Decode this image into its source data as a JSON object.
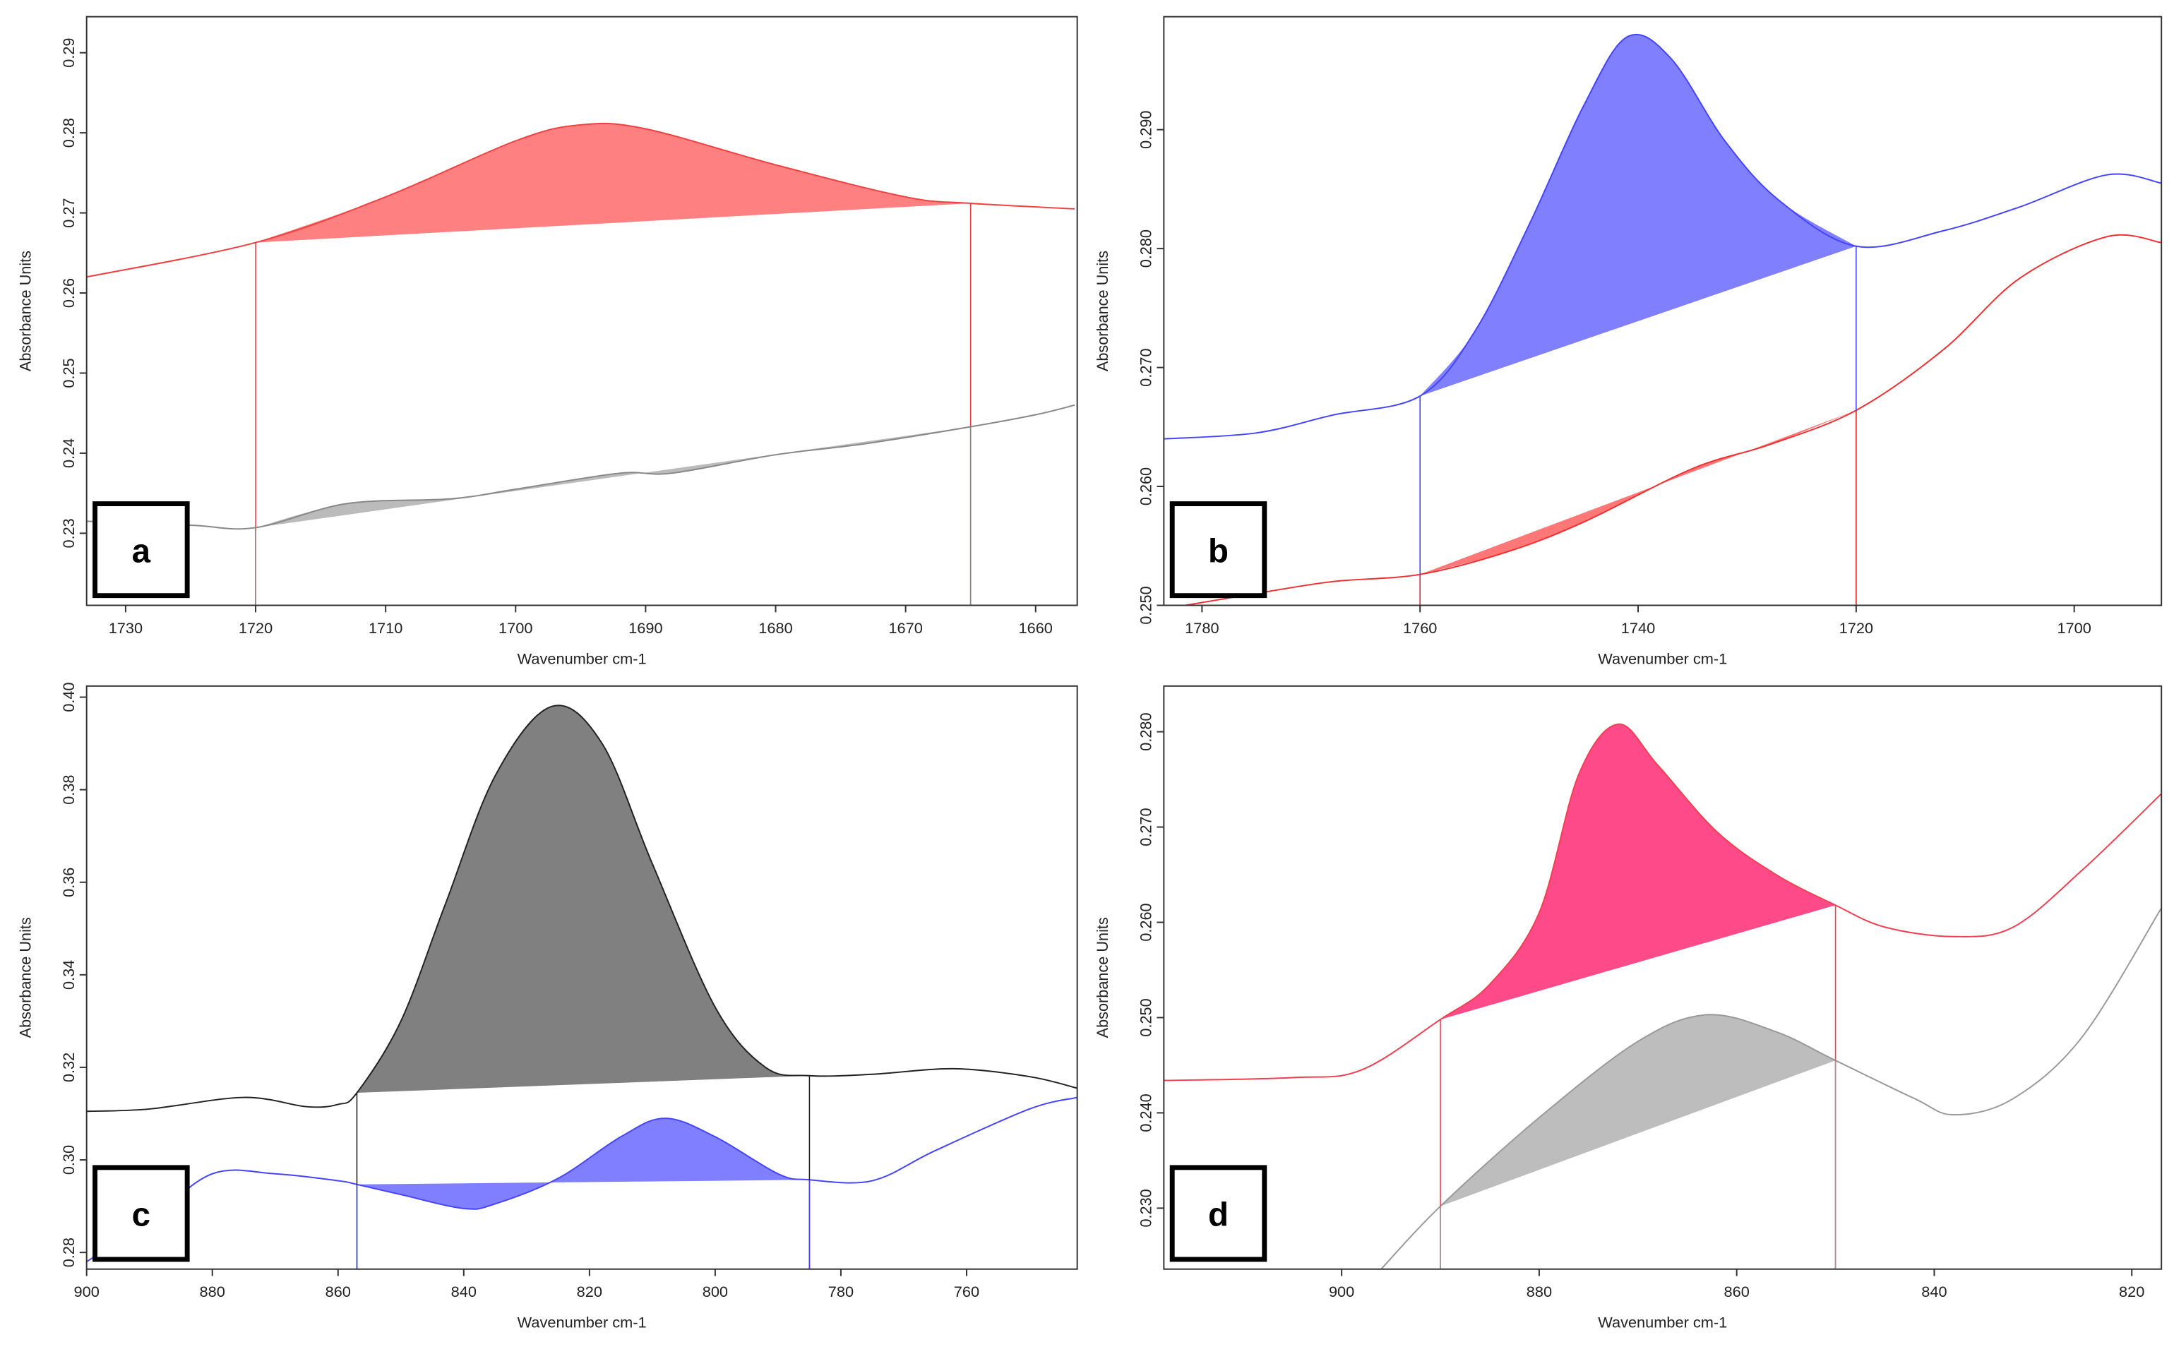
{
  "chart_data": [
    {
      "type": "line",
      "label": "a",
      "xlabel": "Wavenumber cm-1",
      "ylabel": "Absorbance Units",
      "xlim": [
        1733,
        1656.8
      ],
      "ylim": [
        0.221,
        0.2945
      ],
      "xticks": [
        1730,
        1720,
        1710,
        1700,
        1690,
        1680,
        1670,
        1660
      ],
      "yticks": [
        0.23,
        0.24,
        0.25,
        0.26,
        0.27,
        0.28,
        0.29
      ],
      "series": [
        {
          "color": "#f04040",
          "x": [
            1733,
            1720,
            1710,
            1700,
            1695,
            1690,
            1680,
            1670,
            1665,
            1657
          ],
          "values": [
            0.262,
            0.2663,
            0.272,
            0.279,
            0.281,
            0.2805,
            0.276,
            0.272,
            0.2712,
            0.2705
          ]
        },
        {
          "color": "#888888",
          "x": [
            1733,
            1725,
            1720,
            1713,
            1705,
            1700,
            1692,
            1688,
            1680,
            1673,
            1665,
            1660,
            1657
          ],
          "values": [
            0.2315,
            0.231,
            0.2307,
            0.2337,
            0.2343,
            0.2355,
            0.2375,
            0.2375,
            0.2398,
            0.2412,
            0.2433,
            0.2448,
            0.246
          ]
        }
      ],
      "regions": [
        {
          "series": 0,
          "from": 1720,
          "to": 1665,
          "color": "#ff8080"
        },
        {
          "series": 1,
          "from": 1720,
          "to": 1665,
          "color": "#bbbbbb"
        }
      ]
    },
    {
      "type": "line",
      "label": "b",
      "xlabel": "Wavenumber cm-1",
      "ylabel": "Absorbance Units",
      "xlim": [
        1783.5,
        1692
      ],
      "ylim": [
        0.25,
        0.2995
      ],
      "xticks": [
        1780,
        1760,
        1740,
        1720,
        1700
      ],
      "yticks": [
        {
          "value": 0.25,
          "label": "0.250"
        },
        {
          "value": 0.26,
          "label": "0.260"
        },
        {
          "value": 0.27,
          "label": "0.270"
        },
        {
          "value": 0.28,
          "label": "0.280"
        },
        {
          "value": 0.29,
          "label": "0.290"
        }
      ],
      "series": [
        {
          "color": "#4444ff",
          "x": [
            1783.5,
            1775,
            1768,
            1760,
            1755,
            1750,
            1745,
            1741,
            1737,
            1732,
            1727,
            1720,
            1712,
            1705,
            1697,
            1692
          ],
          "values": [
            0.264,
            0.2645,
            0.266,
            0.2676,
            0.273,
            0.282,
            0.292,
            0.2978,
            0.296,
            0.289,
            0.284,
            0.2802,
            0.2815,
            0.2835,
            0.2862,
            0.2855
          ]
        },
        {
          "color": "#f03030",
          "x": [
            1783.5,
            1775,
            1768,
            1760,
            1752,
            1745,
            1735,
            1728,
            1720,
            1712,
            1705,
            1697,
            1692
          ],
          "values": [
            0.2497,
            0.251,
            0.252,
            0.2526,
            0.2545,
            0.257,
            0.2615,
            0.2635,
            0.2664,
            0.2715,
            0.2775,
            0.281,
            0.2805
          ]
        }
      ],
      "regions": [
        {
          "series": 0,
          "from": 1760,
          "to": 1720,
          "color": "#8080ff"
        },
        {
          "series": 1,
          "from": 1760,
          "to": 1720,
          "color": "#ff7777"
        }
      ]
    },
    {
      "type": "line",
      "label": "c",
      "xlabel": "Wavenumber cm-1",
      "ylabel": "Absorbance Units",
      "xlim": [
        900,
        742.4
      ],
      "ylim": [
        0.2764,
        0.4024
      ],
      "xticks": [
        900,
        880,
        860,
        840,
        820,
        800,
        780,
        760
      ],
      "yticks": [
        0.28,
        {
          "value": 0.3,
          "label": "0.30"
        },
        0.32,
        0.34,
        0.36,
        0.38,
        {
          "value": 0.4,
          "label": "0.40"
        }
      ],
      "series": [
        {
          "color": "#222222",
          "x": [
            900,
            890,
            875,
            865,
            860,
            857,
            850,
            843,
            835,
            826,
            818,
            810,
            800,
            792,
            785,
            775,
            762,
            750,
            742.4
          ],
          "values": [
            0.3105,
            0.311,
            0.3135,
            0.3115,
            0.312,
            0.3145,
            0.33,
            0.355,
            0.383,
            0.398,
            0.39,
            0.364,
            0.333,
            0.32,
            0.3182,
            0.3185,
            0.3197,
            0.318,
            0.3155
          ]
        },
        {
          "color": "#4444ff",
          "x": [
            900,
            890,
            880,
            870,
            860,
            857,
            850,
            840,
            835,
            825,
            815,
            808,
            800,
            790,
            785,
            775,
            765,
            750,
            742.4
          ],
          "values": [
            0.278,
            0.287,
            0.297,
            0.297,
            0.2955,
            0.2947,
            0.2925,
            0.2895,
            0.2905,
            0.296,
            0.305,
            0.309,
            0.305,
            0.297,
            0.2957,
            0.2955,
            0.302,
            0.311,
            0.3135
          ]
        }
      ],
      "regions": [
        {
          "series": 0,
          "from": 857,
          "to": 785,
          "color": "#808080"
        },
        {
          "series": 1,
          "from": 857,
          "to": 785,
          "color": "#7f7fff"
        }
      ]
    },
    {
      "type": "line",
      "label": "d",
      "xlabel": "Wavenumber cm-1",
      "ylabel": "Absorbance Units",
      "xlim": [
        918,
        817
      ],
      "ylim": [
        0.2236,
        0.2848
      ],
      "xticks": [
        900,
        880,
        860,
        840,
        820
      ],
      "yticks": [
        {
          "value": 0.23,
          "label": "0.230"
        },
        {
          "value": 0.24,
          "label": "0.240"
        },
        {
          "value": 0.25,
          "label": "0.250"
        },
        {
          "value": 0.26,
          "label": "0.260"
        },
        {
          "value": 0.27,
          "label": "0.270"
        },
        {
          "value": 0.28,
          "label": "0.280"
        }
      ],
      "series": [
        {
          "color": "#f04050",
          "x": [
            918,
            905,
            898,
            890,
            885,
            880,
            876,
            872,
            868,
            862,
            856,
            850,
            845,
            838,
            832,
            825,
            817
          ],
          "values": [
            0.2434,
            0.2437,
            0.2445,
            0.2498,
            0.2535,
            0.261,
            0.2755,
            0.2808,
            0.2765,
            0.2695,
            0.265,
            0.2618,
            0.2595,
            0.2585,
            0.2595,
            0.2655,
            0.2735
          ]
        },
        {
          "color": "#999999",
          "x": [
            896,
            890,
            880,
            870,
            863,
            856,
            850,
            842,
            838,
            832,
            825,
            817
          ],
          "values": [
            0.2236,
            0.2302,
            0.2395,
            0.2475,
            0.2503,
            0.2485,
            0.2455,
            0.2415,
            0.2398,
            0.2415,
            0.248,
            0.2615
          ]
        }
      ],
      "regions": [
        {
          "series": 0,
          "from": 890,
          "to": 850,
          "color": "#ff4a8a"
        },
        {
          "series": 1,
          "from": 890,
          "to": 850,
          "color": "#bdbdbd"
        }
      ]
    }
  ]
}
